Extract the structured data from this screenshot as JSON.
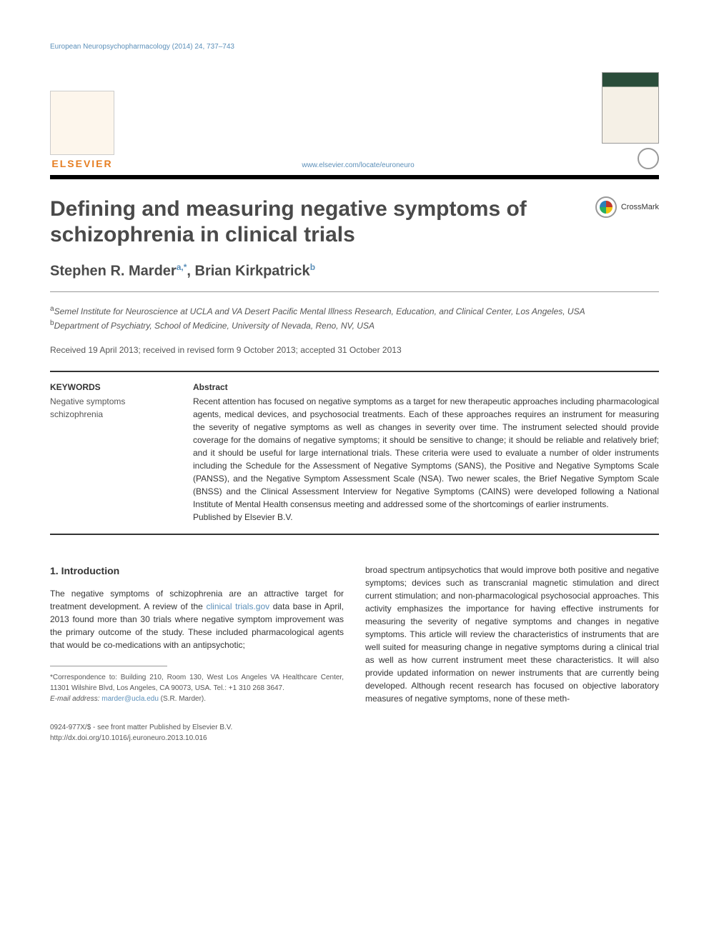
{
  "running_header": "European Neuropsychopharmacology (2014) 24, 737–743",
  "publisher": {
    "name": "ELSEVIER",
    "journal_url": "www.elsevier.com/locate/euroneuro"
  },
  "crossmark_label": "CrossMark",
  "article": {
    "title": "Defining and measuring negative symptoms of schizophrenia in clinical trials",
    "authors_html": "Stephen R. Marder",
    "author1_sup": "a,*",
    "author2": ", Brian Kirkpatrick",
    "author2_sup": "b",
    "affiliations": {
      "a": "Semel Institute for Neuroscience at UCLA and VA Desert Pacific Mental Illness Research, Education, and Clinical Center, Los Angeles, USA",
      "b": "Department of Psychiatry, School of Medicine, University of Nevada, Reno, NV, USA"
    },
    "dates": "Received 19 April 2013; received in revised form 9 October 2013; accepted 31 October 2013"
  },
  "keywords": {
    "heading": "KEYWORDS",
    "text": "Negative symptoms schizophrenia"
  },
  "abstract": {
    "heading": "Abstract",
    "body": "Recent attention has focused on negative symptoms as a target for new therapeutic approaches including pharmacological agents, medical devices, and psychosocial treatments. Each of these approaches requires an instrument for measuring the severity of negative symptoms as well as changes in severity over time. The instrument selected should provide coverage for the domains of negative symptoms; it should be sensitive to change; it should be reliable and relatively brief; and it should be useful for large international trials. These criteria were used to evaluate a number of older instruments including the Schedule for the Assessment of Negative Symptoms (SANS), the Positive and Negative Symptoms Scale (PANSS), and the Negative Symptom Assessment Scale (NSA). Two newer scales, the Brief Negative Symptom Scale (BNSS) and the Clinical Assessment Interview for Negative Symptoms (CAINS) were developed following a National Institute of Mental Health consensus meeting and addressed some of the shortcomings of earlier instruments.",
    "publisher_line": "Published by Elsevier B.V."
  },
  "intro": {
    "heading": "1.    Introduction",
    "col1_part1": "The negative symptoms of schizophrenia are an attractive target for treatment development. A review of the ",
    "col1_link": "clinical trials.gov",
    "col1_part2": " data base in April, 2013 found more than 30 trials where negative symptom improvement was the primary outcome of the study. These included pharmacological agents that would be co-medications with an antipsychotic;",
    "col2": "broad spectrum antipsychotics that would improve both positive and negative symptoms; devices such as transcranial magnetic stimulation and direct current stimulation; and non-pharmacological psychosocial approaches. This activity emphasizes the importance for having effective instruments for measuring the severity of negative symptoms and changes in negative symptoms. This article will review the characteristics of instruments that are well suited for measuring change in negative symptoms during a clinical trial as well as how current instrument meet these characteristics. It will also provide updated information on newer instruments that are currently being developed. Although recent research has focused on objective laboratory measures of negative symptoms, none of these meth-"
  },
  "footnote": {
    "correspondence": "*Correspondence to: Building 210, Room 130, West Los Angeles VA Healthcare Center, 11301 Wilshire Blvd, Los Angeles, CA 90073, USA. Tel.: +1 310 268 3647.",
    "email_label": "E-mail address: ",
    "email": "marder@ucla.edu",
    "email_suffix": " (S.R. Marder)."
  },
  "bottom": {
    "line1": "0924-977X/$ - see front matter Published by Elsevier B.V.",
    "line2": "http://dx.doi.org/10.1016/j.euroneuro.2013.10.016"
  },
  "colors": {
    "link": "#5b8fb9",
    "elsevier": "#e67e22",
    "rule": "#000000",
    "text": "#333333"
  }
}
